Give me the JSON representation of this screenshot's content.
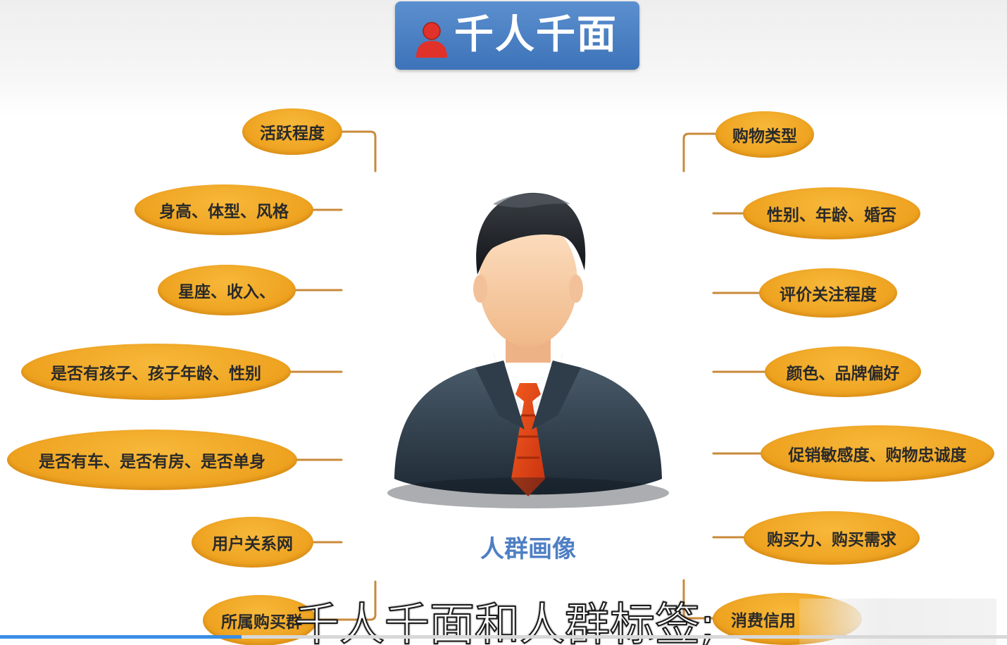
{
  "title": "千人千面",
  "figure_label": "人群画像",
  "subtitle": "千人千面和人群标签;",
  "left_tags": [
    "活跃程度",
    "身高、体型、风格",
    "星座、收入、",
    "是否有孩子、孩子年龄、性别",
    "是否有车、是否有房、是否单身",
    "用户关系网",
    "所属购买群"
  ],
  "right_tags": [
    "购物类型",
    "性别、年龄、婚否",
    "评价关注程度",
    "颜色、品牌偏好",
    "促销敏感度、购物忠诚度",
    "购买力、购买需求",
    "消费信用"
  ],
  "icons": {
    "title_icon": "person-icon",
    "figure": "businessman-avatar-icon"
  },
  "video_progress": 0.24,
  "colors": {
    "title_bg": "#4a82c6",
    "tag_fill": "#eea21f",
    "connector": "#c98a3b",
    "figure_label": "#4f7fc4",
    "progress": "#3a8ee6"
  }
}
